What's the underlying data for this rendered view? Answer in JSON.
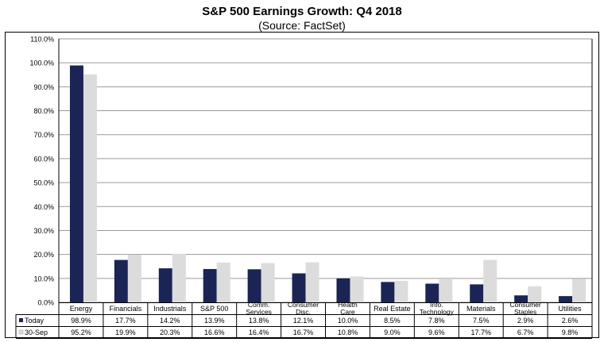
{
  "chart_data": {
    "type": "bar",
    "title": "S&P 500 Earnings Growth: Q4 2018",
    "subtitle": "(Source: FactSet)",
    "categories": [
      [
        "Energy"
      ],
      [
        "Financials"
      ],
      [
        "Industrials"
      ],
      [
        "S&P 500"
      ],
      [
        "Comm.",
        "Services"
      ],
      [
        "Consumer",
        "Disc."
      ],
      [
        "Health",
        "Care"
      ],
      [
        "Real Estate"
      ],
      [
        "Info.",
        "Technology"
      ],
      [
        "Materials"
      ],
      [
        "Consumer",
        "Staples"
      ],
      [
        "Utilities"
      ]
    ],
    "series": [
      {
        "name": "Today",
        "color": "#1b2555",
        "values": [
          98.9,
          17.7,
          14.2,
          13.9,
          13.8,
          12.1,
          10.0,
          8.5,
          7.8,
          7.5,
          2.9,
          2.6
        ],
        "labels": [
          "98.9%",
          "17.7%",
          "14.2%",
          "13.9%",
          "13.8%",
          "12.1%",
          "10.0%",
          "8.5%",
          "7.8%",
          "7.5%",
          "2.9%",
          "2.6%"
        ]
      },
      {
        "name": "30-Sep",
        "color": "#dcdcdc",
        "values": [
          95.2,
          19.9,
          20.3,
          16.6,
          16.4,
          16.7,
          10.8,
          9.0,
          9.6,
          17.7,
          6.7,
          9.8
        ],
        "labels": [
          "95.2%",
          "19.9%",
          "20.3%",
          "16.6%",
          "16.4%",
          "16.7%",
          "10.8%",
          "9.0%",
          "9.6%",
          "17.7%",
          "6.7%",
          "9.8%"
        ]
      }
    ],
    "ylim": [
      0,
      110
    ],
    "yticks": [
      0,
      10,
      20,
      30,
      40,
      50,
      60,
      70,
      80,
      90,
      100,
      110
    ],
    "ytick_labels": [
      "0.0%",
      "10.0%",
      "20.0%",
      "30.0%",
      "40.0%",
      "50.0%",
      "60.0%",
      "70.0%",
      "80.0%",
      "90.0%",
      "100.0%",
      "110.0%"
    ],
    "grid": true,
    "legend": "data-table"
  }
}
